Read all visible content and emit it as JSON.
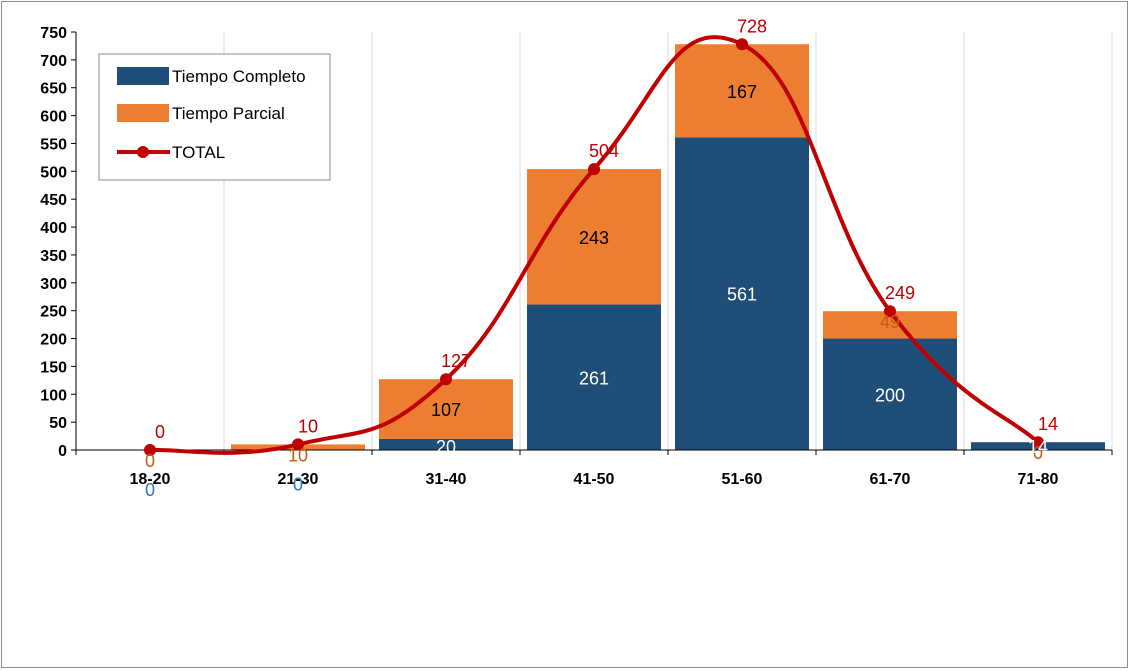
{
  "chart_data": {
    "type": "bar",
    "stacked": true,
    "categories": [
      "18-20",
      "21-30",
      "31-40",
      "41-50",
      "51-60",
      "61-70",
      "71-80"
    ],
    "series": [
      {
        "name": "Tiempo Completo",
        "values": [
          0,
          0,
          20,
          261,
          561,
          200,
          14
        ],
        "color": "#1f4e79"
      },
      {
        "name": "Tiempo Parcial",
        "values": [
          0,
          10,
          107,
          243,
          167,
          49,
          0
        ],
        "color": "#ed7d31"
      },
      {
        "name": "TOTAL",
        "type": "line",
        "values": [
          0,
          10,
          127,
          504,
          728,
          249,
          14
        ],
        "color": "#c00000"
      }
    ],
    "yticks": [
      "0",
      "50",
      "100",
      "150",
      "200",
      "250",
      "300",
      "350",
      "400",
      "450",
      "500",
      "550",
      "600",
      "650",
      "700",
      "750"
    ],
    "ylim": [
      0,
      750
    ],
    "grid": "vertical",
    "legend": "top-left",
    "label_colors": {
      "Tiempo Completo": "#2e75b6",
      "Tiempo Parcial": "#c55a11",
      "TOTAL": "#c00000",
      "inside_light": "#ffffff",
      "inside_dark": "#000000"
    }
  }
}
